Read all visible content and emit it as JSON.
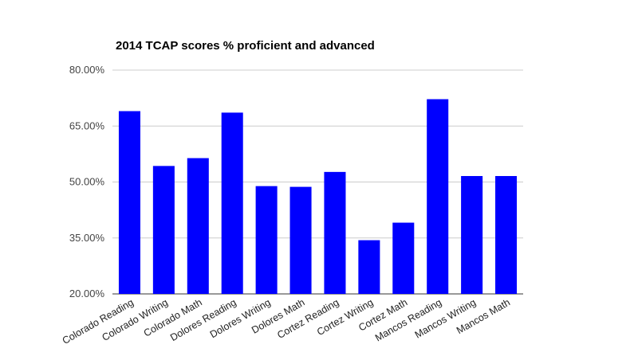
{
  "chart_data": {
    "type": "bar",
    "title": "2014 TCAP scores % proficient and advanced",
    "xlabel": "",
    "ylabel": "",
    "categories": [
      "Colorado Reading",
      "Colorado Writing",
      "Colorado Math",
      "Dolores Reading",
      "Dolores Writing",
      "Dolores Math",
      "Cortez Reading",
      "Cortez Writing",
      "Cortez Math",
      "Mancos Reading",
      "Mancos Writing",
      "Mancos Math"
    ],
    "values": [
      69.0,
      54.3,
      56.4,
      68.6,
      48.9,
      48.7,
      52.7,
      34.4,
      39.1,
      72.2,
      51.6,
      51.6
    ],
    "ylim": [
      20,
      80
    ],
    "yticks": [
      20,
      35,
      50,
      65,
      80
    ],
    "ytick_labels": [
      "20.00%",
      "35.00%",
      "50.00%",
      "65.00%",
      "80.00%"
    ],
    "grid": true,
    "legend": "none",
    "bar_color": "#0000ff"
  }
}
